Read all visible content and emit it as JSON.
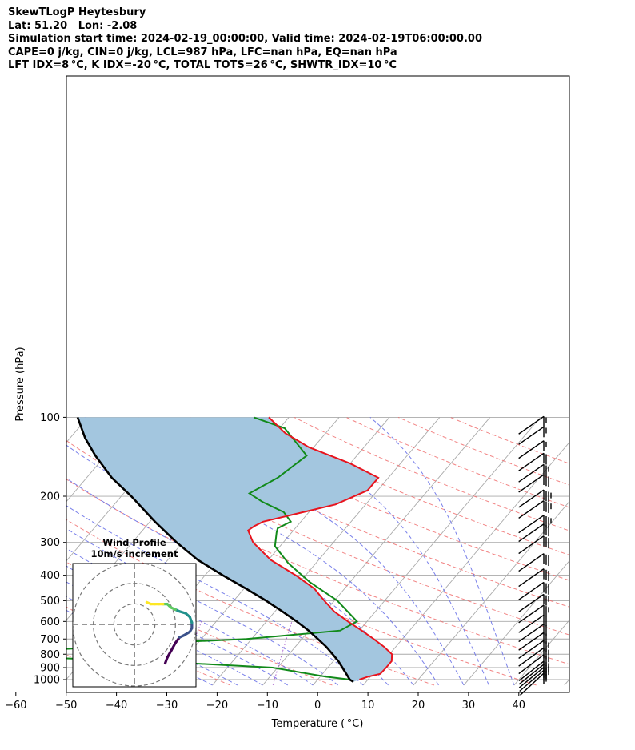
{
  "header": {
    "title": "SkewTLogP Heytesbury",
    "location": "Lat: 51.20   Lon: -2.08",
    "times": "Simulation start time: 2024-02-19_00:00:00, Valid time: 2024-02-19T06:00:00.00",
    "indices_1": "CAPE=0 j/kg, CIN=0 j/kg, LCL=987 hPa, LFC=nan hPa, EQ=nan hPa",
    "indices_2": "LFT IDX=8 °C, K IDX=-20 °C, TOTAL TOTS=26 °C, SHWTR_IDX=10 °C"
  },
  "chart_data": {
    "type": "skewt-logp",
    "xlabel": "Temperature ( °C)",
    "ylabel": "Pressure (hPa)",
    "xlim": [
      -60,
      40
    ],
    "ylim": [
      1050,
      100
    ],
    "x_ticks": [
      -60,
      -50,
      -40,
      -30,
      -20,
      -10,
      0,
      10,
      20,
      30,
      40
    ],
    "x_tick_labels": [
      "−60",
      "−50",
      "−40",
      "−30",
      "−20",
      "−10",
      "0",
      "10",
      "20",
      "30",
      "40"
    ],
    "y_ticks": [
      1000,
      900,
      800,
      700,
      600,
      500,
      400,
      300,
      200,
      100
    ],
    "y_scale": "log",
    "grid": true,
    "colors": {
      "temperature": "#e8141e",
      "dewpoint": "#118a1a",
      "parcel": "#000000",
      "cape_fill": "#a3c6df",
      "dry_adiabat": "#f07070",
      "moist_adiabat": "#6a72e8",
      "mixing_ratio": "#a050c8",
      "isotherm": "#aaaaaa"
    },
    "series": [
      {
        "key": "temperature",
        "points": [
          [
            8.3,
            1000
          ],
          [
            9.5,
            975
          ],
          [
            11.5,
            950
          ],
          [
            11.6,
            900
          ],
          [
            11.6,
            850
          ],
          [
            10.5,
            800
          ],
          [
            7.7,
            750
          ],
          [
            4.3,
            700
          ],
          [
            0.5,
            650
          ],
          [
            -3.8,
            600
          ],
          [
            -8.2,
            550
          ],
          [
            -12.0,
            500
          ],
          [
            -16.0,
            450
          ],
          [
            -22.0,
            400
          ],
          [
            -29.5,
            350
          ],
          [
            -36.0,
            300
          ],
          [
            -39.0,
            270
          ],
          [
            -38.5,
            260
          ],
          [
            -37.5,
            250
          ],
          [
            -26.0,
            215
          ],
          [
            -22.0,
            190
          ],
          [
            -22.0,
            170
          ],
          [
            -30.0,
            150
          ],
          [
            -41.0,
            130
          ],
          [
            -48.0,
            115
          ],
          [
            -54.0,
            100
          ]
        ]
      },
      {
        "key": "dewpoint",
        "points": [
          [
            6.5,
            1000
          ],
          [
            1.2,
            975
          ],
          [
            -11.0,
            900
          ],
          [
            -36.5,
            850
          ],
          [
            -62.0,
            820
          ],
          [
            -62.0,
            775
          ],
          [
            -47.0,
            750
          ],
          [
            -38.0,
            725
          ],
          [
            -21.0,
            700
          ],
          [
            -3.8,
            650
          ],
          [
            -2.0,
            600
          ],
          [
            -9.4,
            500
          ],
          [
            -18.0,
            425
          ],
          [
            -25.5,
            360
          ],
          [
            -31.0,
            310
          ],
          [
            -33.0,
            275
          ],
          [
            -33.5,
            265
          ],
          [
            -32.0,
            250
          ],
          [
            -35.0,
            230
          ],
          [
            -41.0,
            210
          ],
          [
            -45.0,
            195
          ],
          [
            -42.0,
            170
          ],
          [
            -40.0,
            140
          ],
          [
            -49.0,
            110
          ],
          [
            -57.0,
            100
          ]
        ]
      },
      {
        "key": "parcel",
        "points": [
          [
            7.5,
            1020
          ],
          [
            6.4,
            1000
          ],
          [
            4.7,
            950
          ],
          [
            2.9,
            900
          ],
          [
            1.0,
            850
          ],
          [
            -1.3,
            800
          ],
          [
            -3.8,
            750
          ],
          [
            -6.8,
            700
          ],
          [
            -10.1,
            650
          ],
          [
            -14.0,
            600
          ],
          [
            -18.5,
            550
          ],
          [
            -23.6,
            500
          ],
          [
            -29.6,
            450
          ],
          [
            -36.5,
            400
          ],
          [
            -44.0,
            350
          ],
          [
            -51.2,
            300
          ],
          [
            -59.0,
            250
          ],
          [
            -68.0,
            200
          ],
          [
            -75.0,
            170
          ],
          [
            -82.0,
            140
          ],
          [
            -87.0,
            120
          ],
          [
            -92.0,
            100
          ]
        ]
      }
    ],
    "wind_barbs": [
      {
        "p": 1000,
        "speed": 15,
        "dir": 250
      },
      {
        "p": 975,
        "speed": 20,
        "dir": 255
      },
      {
        "p": 950,
        "speed": 25,
        "dir": 258
      },
      {
        "p": 925,
        "speed": 25,
        "dir": 260
      },
      {
        "p": 900,
        "speed": 25,
        "dir": 262
      },
      {
        "p": 850,
        "speed": 25,
        "dir": 265
      },
      {
        "p": 800,
        "speed": 25,
        "dir": 268
      },
      {
        "p": 750,
        "speed": 25,
        "dir": 270
      },
      {
        "p": 700,
        "speed": 20,
        "dir": 272
      },
      {
        "p": 650,
        "speed": 20,
        "dir": 272
      },
      {
        "p": 600,
        "speed": 20,
        "dir": 272
      },
      {
        "p": 550,
        "speed": 25,
        "dir": 272
      },
      {
        "p": 500,
        "speed": 25,
        "dir": 272
      },
      {
        "p": 450,
        "speed": 30,
        "dir": 272
      },
      {
        "p": 400,
        "speed": 30,
        "dir": 272
      },
      {
        "p": 350,
        "speed": 30,
        "dir": 272
      },
      {
        "p": 300,
        "speed": 30,
        "dir": 272
      },
      {
        "p": 270,
        "speed": 30,
        "dir": 272
      },
      {
        "p": 250,
        "speed": 35,
        "dir": 272
      },
      {
        "p": 220,
        "speed": 35,
        "dir": 272
      },
      {
        "p": 200,
        "speed": 35,
        "dir": 272
      },
      {
        "p": 175,
        "speed": 30,
        "dir": 272
      },
      {
        "p": 160,
        "speed": 25,
        "dir": 272
      },
      {
        "p": 145,
        "speed": 20,
        "dir": 272
      },
      {
        "p": 130,
        "speed": 15,
        "dir": 272
      },
      {
        "p": 115,
        "speed": 15,
        "dir": 272
      },
      {
        "p": 105,
        "speed": 15,
        "dir": 272
      }
    ],
    "hodograph": {
      "title_line1": "Wind Profile",
      "title_line2": "10m/s increment",
      "range": 30,
      "rings": [
        10,
        20,
        30
      ],
      "colormap": [
        "#440154",
        "#3b528b",
        "#21918c",
        "#5ec962",
        "#fde725"
      ],
      "points": [
        [
          15,
          -21
        ],
        [
          16,
          -18
        ],
        [
          18,
          -14
        ],
        [
          20,
          -10
        ],
        [
          22,
          -7
        ],
        [
          24,
          -6
        ],
        [
          27,
          -4
        ],
        [
          28,
          -2
        ],
        [
          28,
          1
        ],
        [
          27,
          4
        ],
        [
          25,
          6
        ],
        [
          22,
          7
        ],
        [
          20,
          8
        ],
        [
          18,
          9
        ],
        [
          17,
          10
        ],
        [
          16,
          11
        ],
        [
          14,
          11
        ],
        [
          12,
          11
        ],
        [
          10,
          11
        ],
        [
          8,
          11
        ],
        [
          6,
          12
        ]
      ]
    }
  }
}
